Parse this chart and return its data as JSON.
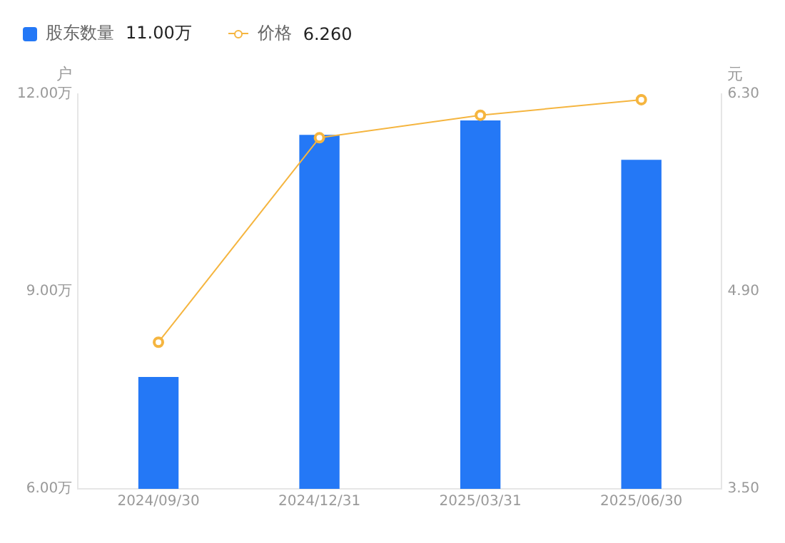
{
  "chart_data": {
    "type": "bar",
    "categories": [
      "2024/09/30",
      "2024/12/31",
      "2025/03/31",
      "2025/06/30"
    ],
    "series": [
      {
        "name": "股东数量",
        "color": "#2478f6",
        "values": [
          7.7,
          11.38,
          11.6,
          11.0
        ]
      },
      {
        "name": "价格",
        "type": "line",
        "axis": "y2",
        "color": "#f5b53f",
        "values": [
          4.54,
          5.99,
          6.15,
          6.26
        ]
      }
    ],
    "annotations": [
      "11.00万",
      "6.260"
    ],
    "ylabel": "户",
    "y2label": "元",
    "ylim": [
      6,
      12
    ],
    "yticks": [
      {
        "value": 6,
        "label": "6.00万"
      },
      {
        "value": 9,
        "label": "9.00万"
      },
      {
        "value": 12,
        "label": "12.00万"
      }
    ],
    "y2lim": [
      3.5,
      6.3
    ],
    "y2ticks": [
      {
        "value": 3.5,
        "label": "3.50"
      },
      {
        "value": 4.9,
        "label": "4.90"
      },
      {
        "value": 6.3,
        "label": "6.30"
      }
    ],
    "grid": false,
    "legend": "top left",
    "marker": "circle",
    "line_style": "solid"
  }
}
